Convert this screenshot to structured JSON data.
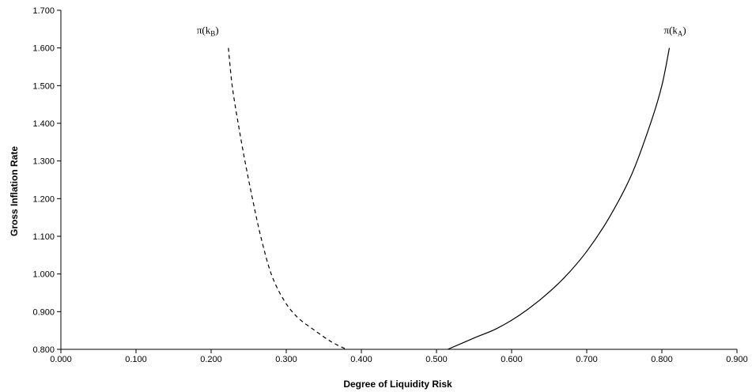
{
  "chart_data": {
    "type": "line",
    "title": "",
    "xlabel": "Degree of Liquidity Risk",
    "ylabel": "Gross Inflation Rate",
    "xlim": [
      0.0,
      0.9
    ],
    "ylim": [
      0.8,
      1.7
    ],
    "x_ticks": [
      "0.000",
      "0.100",
      "0.200",
      "0.300",
      "0.400",
      "0.500",
      "0.600",
      "0.700",
      "0.800",
      "0.900"
    ],
    "y_ticks": [
      "0.800",
      "0.900",
      "1.000",
      "1.100",
      "1.200",
      "1.300",
      "1.400",
      "1.500",
      "1.600",
      "1.700"
    ],
    "grid": false,
    "legend": "none",
    "series": [
      {
        "name": "π(kB)",
        "label_main": "π(k",
        "label_sub": "B",
        "label_end": ")",
        "style": "dashed",
        "color": "#000000",
        "points": [
          [
            0.223,
            1.6
          ],
          [
            0.228,
            1.5
          ],
          [
            0.236,
            1.4
          ],
          [
            0.245,
            1.3
          ],
          [
            0.255,
            1.2
          ],
          [
            0.266,
            1.1
          ],
          [
            0.28,
            1.0
          ],
          [
            0.297,
            0.93
          ],
          [
            0.315,
            0.885
          ],
          [
            0.338,
            0.85
          ],
          [
            0.36,
            0.82
          ],
          [
            0.38,
            0.8
          ]
        ]
      },
      {
        "name": "π(kA)",
        "label_main": "π(k",
        "label_sub": "A",
        "label_end": ")",
        "style": "solid",
        "color": "#000000",
        "points": [
          [
            0.515,
            0.8
          ],
          [
            0.55,
            0.83
          ],
          [
            0.58,
            0.855
          ],
          [
            0.61,
            0.89
          ],
          [
            0.64,
            0.935
          ],
          [
            0.67,
            0.99
          ],
          [
            0.7,
            1.06
          ],
          [
            0.73,
            1.15
          ],
          [
            0.76,
            1.265
          ],
          [
            0.785,
            1.4
          ],
          [
            0.8,
            1.5
          ],
          [
            0.81,
            1.6
          ]
        ]
      }
    ]
  }
}
